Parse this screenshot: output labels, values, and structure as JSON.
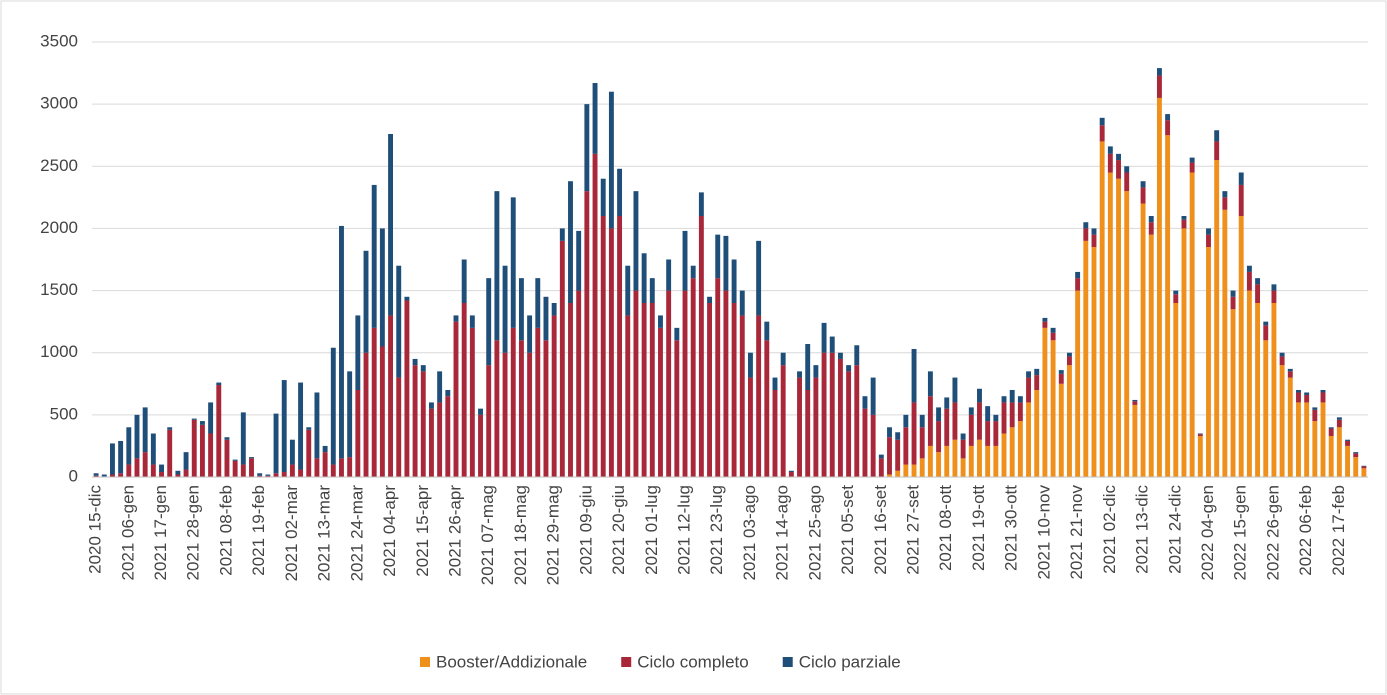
{
  "chart_data": {
    "type": "stacked-bar",
    "categories": [
      "2020 15-dic",
      null,
      null,
      null,
      "2021 06-gen",
      null,
      null,
      null,
      "2021 17-gen",
      null,
      null,
      null,
      "2021 28-gen",
      null,
      null,
      null,
      "2021 08-feb",
      null,
      null,
      null,
      "2021 19-feb",
      null,
      null,
      null,
      "2021 02-mar",
      null,
      null,
      null,
      "2021 13-mar",
      null,
      null,
      null,
      "2021 24-mar",
      null,
      null,
      null,
      "2021 04-apr",
      null,
      null,
      null,
      "2021 15-apr",
      null,
      null,
      null,
      "2021 26-apr",
      null,
      null,
      null,
      "2021 07-mag",
      null,
      null,
      null,
      "2021 18-mag",
      null,
      null,
      null,
      "2021 29-mag",
      null,
      null,
      null,
      "2021 09-giu",
      null,
      null,
      null,
      "2021 20-giu",
      null,
      null,
      null,
      "2021 01-lug",
      null,
      null,
      null,
      "2021 12-lug",
      null,
      null,
      null,
      "2021 23-lug",
      null,
      null,
      null,
      "2021 03-ago",
      null,
      null,
      null,
      "2021 14-ago",
      null,
      null,
      null,
      "2021 25-ago",
      null,
      null,
      null,
      "2021 05-set",
      null,
      null,
      null,
      "2021 16-set",
      null,
      null,
      null,
      "2021 27-set",
      null,
      null,
      null,
      "2021 08-ott",
      null,
      null,
      null,
      "2021 19-ott",
      null,
      null,
      null,
      "2021 30-ott",
      null,
      null,
      null,
      "2021 10-nov",
      null,
      null,
      null,
      "2021 21-nov",
      null,
      null,
      null,
      "2021 02-dic",
      null,
      null,
      null,
      "2021 13-dic",
      null,
      null,
      null,
      "2021 24-dic",
      null,
      null,
      null,
      "2022 04-gen",
      null,
      null,
      null,
      "2022 15-gen",
      null,
      null,
      null,
      "2022 26-gen",
      null,
      null,
      null,
      "2022 06-feb",
      null,
      null,
      null,
      "2022 17-feb",
      null,
      null,
      null
    ],
    "series": [
      {
        "name": "Booster/Addizionale",
        "color": "#f0901c",
        "values": [
          0,
          0,
          0,
          0,
          0,
          0,
          0,
          0,
          0,
          0,
          0,
          0,
          0,
          0,
          0,
          0,
          0,
          0,
          0,
          0,
          0,
          0,
          0,
          0,
          0,
          0,
          0,
          0,
          0,
          0,
          0,
          0,
          0,
          0,
          0,
          0,
          0,
          0,
          0,
          0,
          0,
          0,
          0,
          0,
          0,
          0,
          0,
          0,
          0,
          0,
          0,
          0,
          0,
          0,
          0,
          0,
          0,
          0,
          0,
          0,
          0,
          0,
          0,
          0,
          0,
          0,
          0,
          0,
          0,
          0,
          0,
          0,
          0,
          0,
          0,
          0,
          0,
          0,
          0,
          0,
          0,
          0,
          0,
          0,
          0,
          0,
          0,
          0,
          0,
          0,
          0,
          0,
          0,
          0,
          0,
          0,
          0,
          20,
          50,
          100,
          100,
          150,
          250,
          200,
          250,
          300,
          150,
          250,
          300,
          250,
          250,
          350,
          400,
          450,
          600,
          700,
          1200,
          1100,
          750,
          900,
          1500,
          1900,
          1850,
          2700,
          2450,
          2400,
          2300,
          580,
          2200,
          1950,
          3050,
          2750,
          1400,
          2000,
          2450,
          330,
          1850,
          2550,
          2150,
          1350,
          2100,
          1500,
          1400,
          1100,
          1400,
          900,
          800,
          600,
          600,
          450,
          600,
          330,
          400,
          250,
          160,
          70
        ]
      },
      {
        "name": "Ciclo completo",
        "color": "#a8283a",
        "values": [
          10,
          5,
          20,
          30,
          100,
          150,
          200,
          100,
          40,
          380,
          20,
          60,
          460,
          420,
          350,
          740,
          300,
          130,
          100,
          150,
          10,
          10,
          30,
          40,
          100,
          60,
          380,
          150,
          200,
          100,
          150,
          160,
          700,
          1000,
          1200,
          1050,
          1300,
          800,
          1420,
          900,
          850,
          550,
          600,
          650,
          1250,
          1400,
          1200,
          500,
          900,
          1100,
          1000,
          1200,
          1100,
          1000,
          1200,
          1100,
          1300,
          1900,
          1400,
          1500,
          2300,
          2600,
          2100,
          2000,
          2100,
          1300,
          1500,
          1400,
          1400,
          1200,
          1500,
          1100,
          1500,
          1600,
          2100,
          1400,
          1600,
          1500,
          1400,
          1300,
          800,
          1300,
          1100,
          700,
          900,
          40,
          800,
          700,
          800,
          1000,
          1000,
          950,
          850,
          900,
          550,
          500,
          150,
          300,
          250,
          300,
          500,
          250,
          400,
          250,
          300,
          300,
          150,
          250,
          300,
          200,
          200,
          250,
          200,
          150,
          200,
          120,
          50,
          60,
          80,
          70,
          100,
          100,
          100,
          130,
          150,
          150,
          150,
          30,
          130,
          100,
          180,
          120,
          70,
          70,
          80,
          15,
          100,
          150,
          100,
          100,
          250,
          150,
          150,
          120,
          100,
          70,
          50,
          80,
          60,
          90,
          80,
          60,
          60,
          40,
          30,
          15
        ]
      },
      {
        "name": "Ciclo parziale",
        "color": "#1f4e79",
        "values": [
          20,
          15,
          250,
          260,
          300,
          350,
          360,
          250,
          60,
          20,
          30,
          140,
          10,
          30,
          250,
          20,
          20,
          10,
          420,
          10,
          20,
          10,
          480,
          740,
          200,
          700,
          20,
          530,
          50,
          940,
          1870,
          690,
          600,
          820,
          1150,
          950,
          1460,
          900,
          30,
          50,
          50,
          50,
          250,
          50,
          50,
          350,
          100,
          50,
          700,
          1200,
          700,
          1050,
          500,
          300,
          400,
          350,
          100,
          100,
          980,
          480,
          700,
          570,
          300,
          1100,
          380,
          400,
          800,
          400,
          200,
          100,
          250,
          100,
          480,
          100,
          190,
          50,
          350,
          440,
          350,
          200,
          200,
          600,
          150,
          100,
          100,
          10,
          50,
          370,
          100,
          240,
          130,
          50,
          50,
          160,
          100,
          300,
          30,
          80,
          60,
          100,
          430,
          100,
          200,
          110,
          90,
          200,
          50,
          60,
          110,
          120,
          50,
          50,
          100,
          50,
          50,
          50,
          30,
          40,
          30,
          30,
          50,
          50,
          50,
          60,
          60,
          50,
          50,
          10,
          50,
          50,
          60,
          50,
          30,
          30,
          40,
          5,
          50,
          90,
          50,
          50,
          100,
          50,
          50,
          30,
          50,
          30,
          20,
          20,
          20,
          20,
          20,
          10,
          20,
          10,
          10,
          5
        ]
      }
    ],
    "ylim": [
      0,
      3500
    ],
    "yticks": [
      0,
      500,
      1000,
      1500,
      2000,
      2500,
      3000,
      3500
    ],
    "grid": true,
    "legend": "bottom"
  }
}
